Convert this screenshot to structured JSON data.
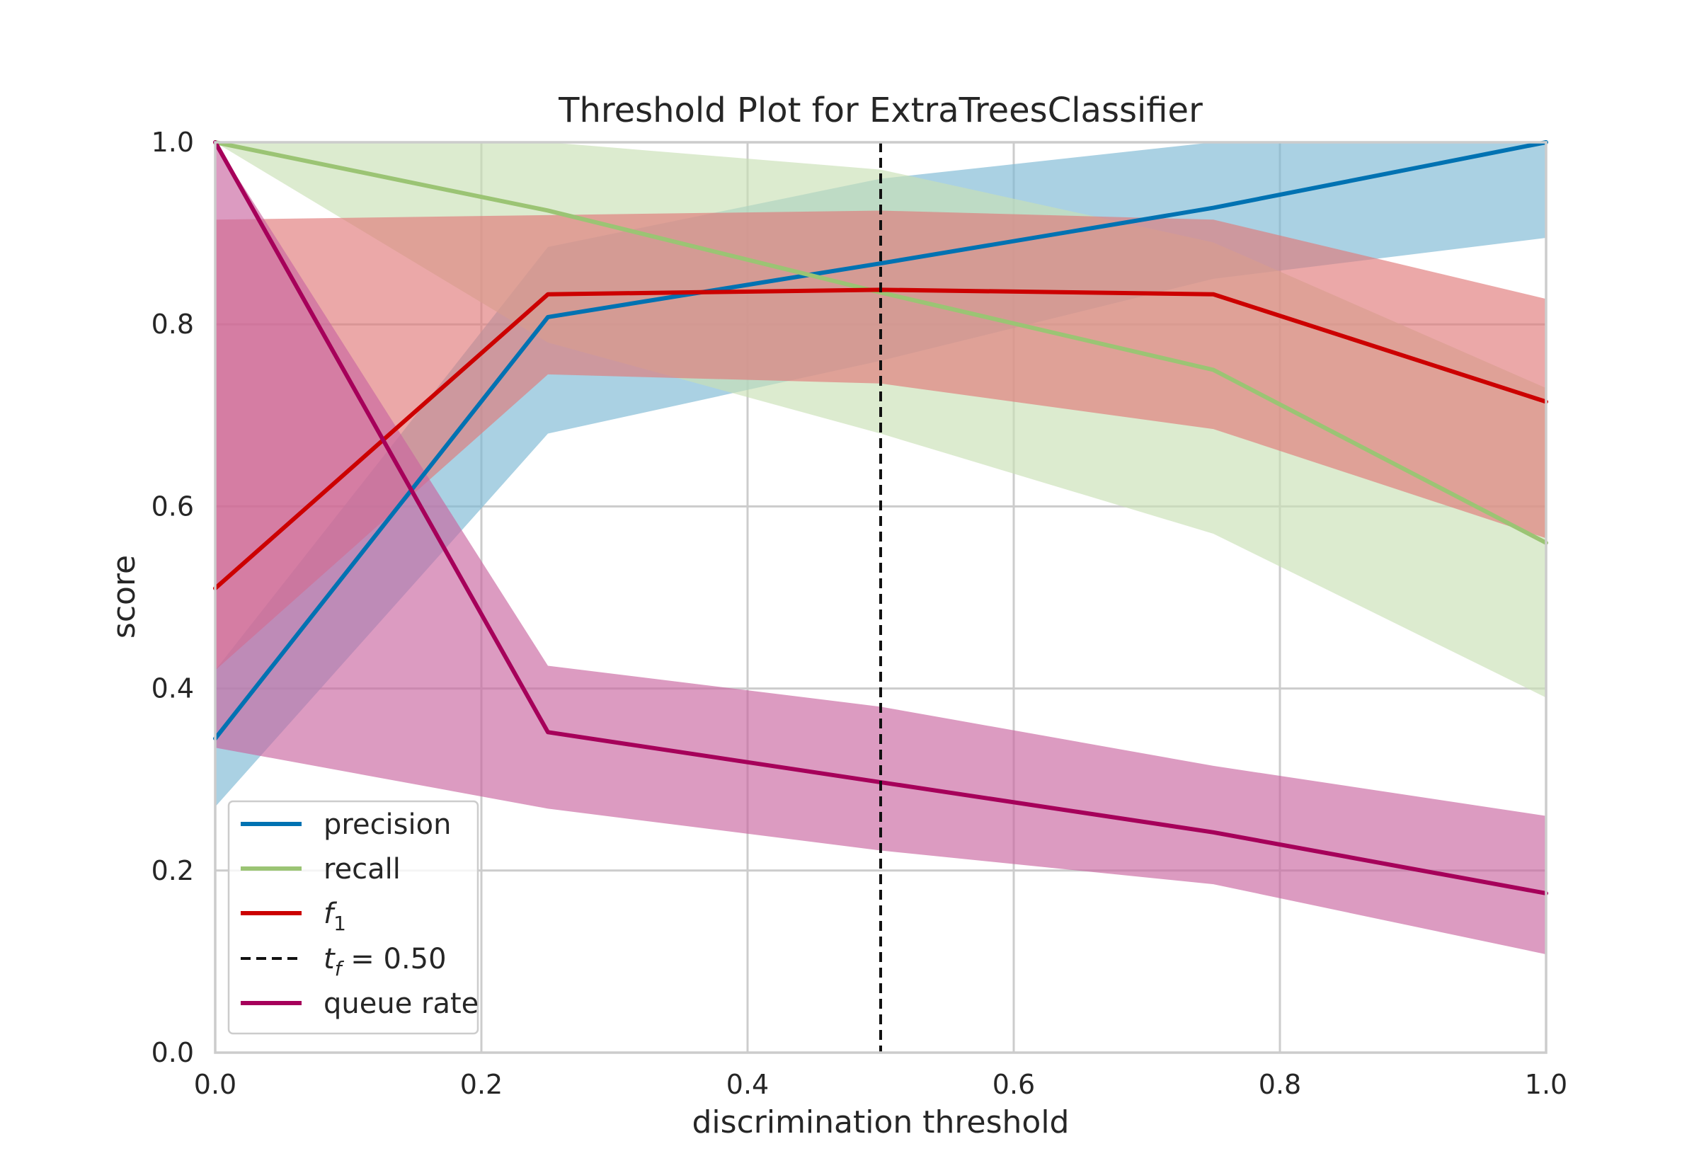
{
  "chart_data": {
    "type": "line",
    "title": "Threshold Plot for ExtraTreesClassifier",
    "xlabel": "discrimination threshold",
    "ylabel": "score",
    "xlim": [
      0.0,
      1.0
    ],
    "ylim": [
      0.0,
      1.0
    ],
    "xticks": [
      "0.0",
      "0.2",
      "0.4",
      "0.6",
      "0.8",
      "1.0"
    ],
    "yticks": [
      "0.0",
      "0.2",
      "0.4",
      "0.6",
      "0.8",
      "1.0"
    ],
    "grid": true,
    "legend_position": "lower-left",
    "x": [
      0.0,
      0.25,
      0.5,
      0.75,
      1.0
    ],
    "series": [
      {
        "name": "precision",
        "color": "#0072B2",
        "band_color": "#7DB9D4",
        "values": [
          0.345,
          0.808,
          0.867,
          0.928,
          1.0
        ],
        "lower": [
          0.27,
          0.68,
          0.76,
          0.85,
          0.895
        ],
        "upper": [
          0.42,
          0.885,
          0.96,
          1.0,
          1.0
        ]
      },
      {
        "name": "recall",
        "color": "#9BC474",
        "band_color": "#C9E0B5",
        "values": [
          1.0,
          0.925,
          0.835,
          0.75,
          0.56
        ],
        "lower": [
          1.0,
          0.78,
          0.68,
          0.57,
          0.39
        ],
        "upper": [
          1.0,
          1.0,
          0.97,
          0.89,
          0.73
        ]
      },
      {
        "name": "f₁",
        "legend_main": "f",
        "legend_sub": "1",
        "color": "#CC0000",
        "band_color": "#E07A7A",
        "values": [
          0.51,
          0.833,
          0.838,
          0.833,
          0.715
        ],
        "lower": [
          0.42,
          0.745,
          0.735,
          0.685,
          0.565
        ],
        "upper": [
          0.915,
          0.92,
          0.925,
          0.915,
          0.828
        ]
      },
      {
        "name": "queue rate",
        "color": "#A6005A",
        "band_color": "#C966A0",
        "values": [
          1.0,
          0.352,
          0.297,
          0.242,
          0.175
        ],
        "lower": [
          0.335,
          0.268,
          0.222,
          0.185,
          0.108
        ],
        "upper": [
          1.0,
          0.425,
          0.38,
          0.315,
          0.26
        ]
      }
    ],
    "threshold_line": {
      "x": 0.5,
      "legend_main": "t",
      "legend_sub": "f",
      "legend_rest": " = 0.50",
      "color": "#111111"
    }
  }
}
